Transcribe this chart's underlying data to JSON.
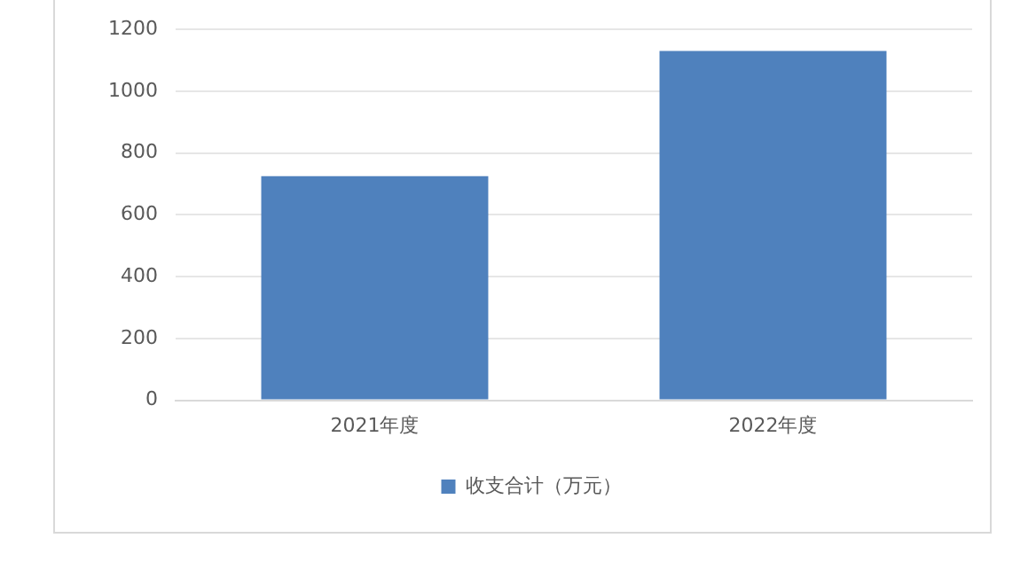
{
  "chart_data": {
    "type": "bar",
    "categories": [
      "2021年度",
      "2022年度"
    ],
    "series": [
      {
        "name": "收支合计（万元）",
        "color": "#4f81bd",
        "values": [
          725,
          1130
        ]
      }
    ],
    "ylim": [
      0,
      1200
    ],
    "yticks": [
      0,
      200,
      400,
      600,
      800,
      1000,
      1200
    ],
    "grid": "y",
    "legend": "bottom"
  }
}
